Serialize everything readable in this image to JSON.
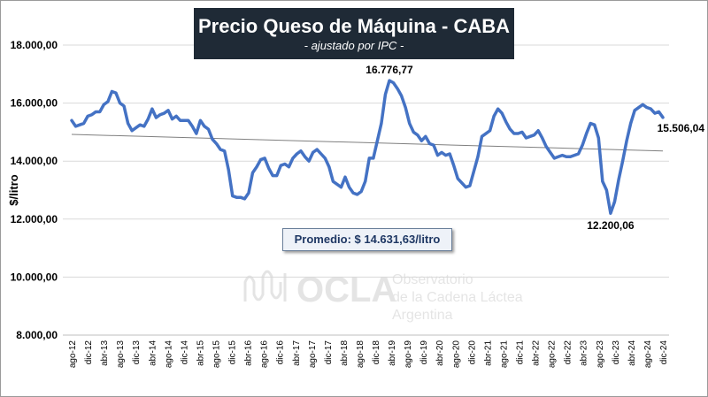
{
  "chart_data": {
    "type": "line",
    "title": "Precio Queso de Máquina - CABA",
    "subtitle": "- ajustado por IPC -",
    "ylabel": "$/litro",
    "xlabel": "",
    "ylim": [
      8000,
      18000
    ],
    "y_ticks": [
      8000,
      10000,
      12000,
      14000,
      16000,
      18000
    ],
    "y_tick_labels": [
      "8.000,00",
      "10.000,00",
      "12.000,00",
      "14.000,00",
      "16.000,00",
      "18.000,00"
    ],
    "x_tick_labels": [
      "ago-12",
      "dic-12",
      "abr-13",
      "ago-13",
      "dic-13",
      "abr-14",
      "ago-14",
      "dic-14",
      "abr-15",
      "ago-15",
      "dic-15",
      "abr-16",
      "ago-16",
      "dic-16",
      "abr-17",
      "ago-17",
      "dic-17",
      "abr-18",
      "ago-18",
      "dic-18",
      "abr-19",
      "ago-19",
      "dic-19",
      "abr-20",
      "ago-20",
      "dic-20",
      "abr-21",
      "ago-21",
      "dic-21",
      "abr-22",
      "ago-22",
      "dic-22",
      "abr-23",
      "ago-23",
      "dic-23",
      "abr-24",
      "ago-24",
      "dic-24"
    ],
    "x_start": "ago-12",
    "x_end": "dic-24",
    "series": [
      {
        "name": "Precio Queso de Máquina",
        "color": "#4472c4",
        "values": [
          15400,
          15200,
          15250,
          15300,
          15550,
          15600,
          15700,
          15700,
          15950,
          16050,
          16400,
          16350,
          16000,
          15900,
          15300,
          15050,
          15150,
          15250,
          15200,
          15450,
          15800,
          15500,
          15600,
          15650,
          15750,
          15450,
          15550,
          15400,
          15400,
          15400,
          15200,
          14950,
          15400,
          15200,
          15100,
          14750,
          14600,
          14400,
          14350,
          13700,
          12800,
          12750,
          12750,
          12700,
          12900,
          13600,
          13800,
          14050,
          14100,
          13750,
          13500,
          13500,
          13850,
          13900,
          13800,
          14100,
          14250,
          14350,
          14150,
          14000,
          14300,
          14400,
          14250,
          14100,
          13800,
          13300,
          13200,
          13100,
          13450,
          13100,
          12900,
          12850,
          12950,
          13300,
          14100,
          14100,
          14700,
          15300,
          16300,
          16777,
          16700,
          16500,
          16250,
          15850,
          15300,
          15000,
          14900,
          14700,
          14850,
          14600,
          14550,
          14200,
          14300,
          14200,
          14250,
          13850,
          13400,
          13250,
          13100,
          13150,
          13650,
          14150,
          14850,
          14950,
          15050,
          15550,
          15800,
          15650,
          15350,
          15100,
          14950,
          14950,
          15000,
          14800,
          14850,
          14900,
          15050,
          14800,
          14500,
          14300,
          14100,
          14150,
          14200,
          14150,
          14150,
          14200,
          14250,
          14550,
          14950,
          15300,
          15250,
          14800,
          13300,
          13000,
          12200,
          12600,
          13350,
          14000,
          14700,
          15300,
          15750,
          15850,
          15950,
          15850,
          15800,
          15650,
          15700,
          15506
        ]
      }
    ],
    "trendline": {
      "start": 14920,
      "end": 14350
    },
    "annotations": {
      "max_label": "16.776,77",
      "min_label": "12.200,06",
      "last_label": "15.506,04",
      "average_label": "Promedio: $ 14.631,63/litro"
    },
    "watermark": {
      "brand": "OCLA",
      "line1": "Observatorio",
      "line2": "de la Cadena Láctea",
      "line3": "Argentina"
    }
  }
}
